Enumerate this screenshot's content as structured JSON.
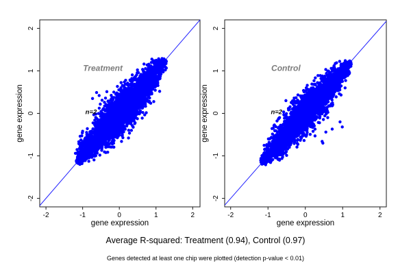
{
  "figure": {
    "background_color": "#ffffff",
    "point_color": "#0000ff",
    "line_color": "#2222ff",
    "frame_color": "#1a1a1a",
    "panel_title_color": "#7c7c7c",
    "caption": "Average R-squared: Treatment (0.94), Control (0.97)",
    "note": "Genes detected at least one chip were plotted (detection p-value < 0.01)"
  },
  "chart_data": [
    {
      "type": "scatter",
      "title": "Treatment",
      "xlabel": "gene expression",
      "ylabel": "gene expression",
      "xlim": [
        -2.17,
        2.2
      ],
      "ylim": [
        -2.2,
        2.2
      ],
      "xticks": [
        -2,
        -1,
        0,
        1,
        2
      ],
      "yticks": [
        -2,
        -1,
        0,
        1,
        2
      ],
      "grid": false,
      "identity_line": true,
      "r_squared": 0.94,
      "title_pos": {
        "x": -0.45,
        "y": 1.0
      },
      "annotation": {
        "text": "n=2",
        "x": -0.77,
        "y": -0.02
      },
      "cloud": {
        "n": 3600,
        "t_min": -1.16,
        "t_max": 1.26,
        "t_mean": 0.05,
        "t_sd": 0.6,
        "half_width": 0.33,
        "seed": 1337
      },
      "outliers": [
        [
          -0.62,
          0.49
        ],
        [
          -0.55,
          0.42
        ],
        [
          -0.34,
          0.51
        ],
        [
          -0.73,
          0.35
        ],
        [
          -0.47,
          0.31
        ],
        [
          -1.0,
          -0.42
        ],
        [
          -1.06,
          -0.73
        ],
        [
          0.25,
          -0.58
        ],
        [
          0.06,
          -0.66
        ],
        [
          0.42,
          -0.24
        ],
        [
          -0.15,
          0.5
        ],
        [
          0.33,
          -0.4
        ]
      ]
    },
    {
      "type": "scatter",
      "title": "Control",
      "xlabel": "gene expression",
      "ylabel": "gene expression",
      "xlim": [
        -2.16,
        2.17
      ],
      "ylim": [
        -2.2,
        2.2
      ],
      "xticks": [
        -2,
        -1,
        0,
        1,
        2
      ],
      "yticks": [
        -2,
        -1,
        0,
        1,
        2
      ],
      "grid": false,
      "identity_line": true,
      "r_squared": 0.97,
      "title_pos": {
        "x": -0.52,
        "y": 1.0
      },
      "annotation": {
        "text": "n=2",
        "x": -0.77,
        "y": -0.02
      },
      "cloud": {
        "n": 3600,
        "t_min": -1.18,
        "t_max": 1.22,
        "t_mean": 0.0,
        "t_sd": 0.58,
        "half_width": 0.28,
        "seed": 777
      },
      "outliers": [
        [
          0.45,
          -0.66
        ],
        [
          0.47,
          -0.7
        ],
        [
          0.99,
          -0.32
        ],
        [
          0.93,
          -0.2
        ],
        [
          0.72,
          -0.37
        ],
        [
          0.26,
          -0.53
        ],
        [
          0.17,
          -0.32
        ],
        [
          -0.08,
          0.41
        ],
        [
          0.05,
          -0.45
        ],
        [
          0.38,
          -0.22
        ],
        [
          0.55,
          -0.44
        ],
        [
          -0.52,
          0.3
        ],
        [
          -0.3,
          0.36
        ],
        [
          0.6,
          -0.1
        ]
      ]
    }
  ]
}
